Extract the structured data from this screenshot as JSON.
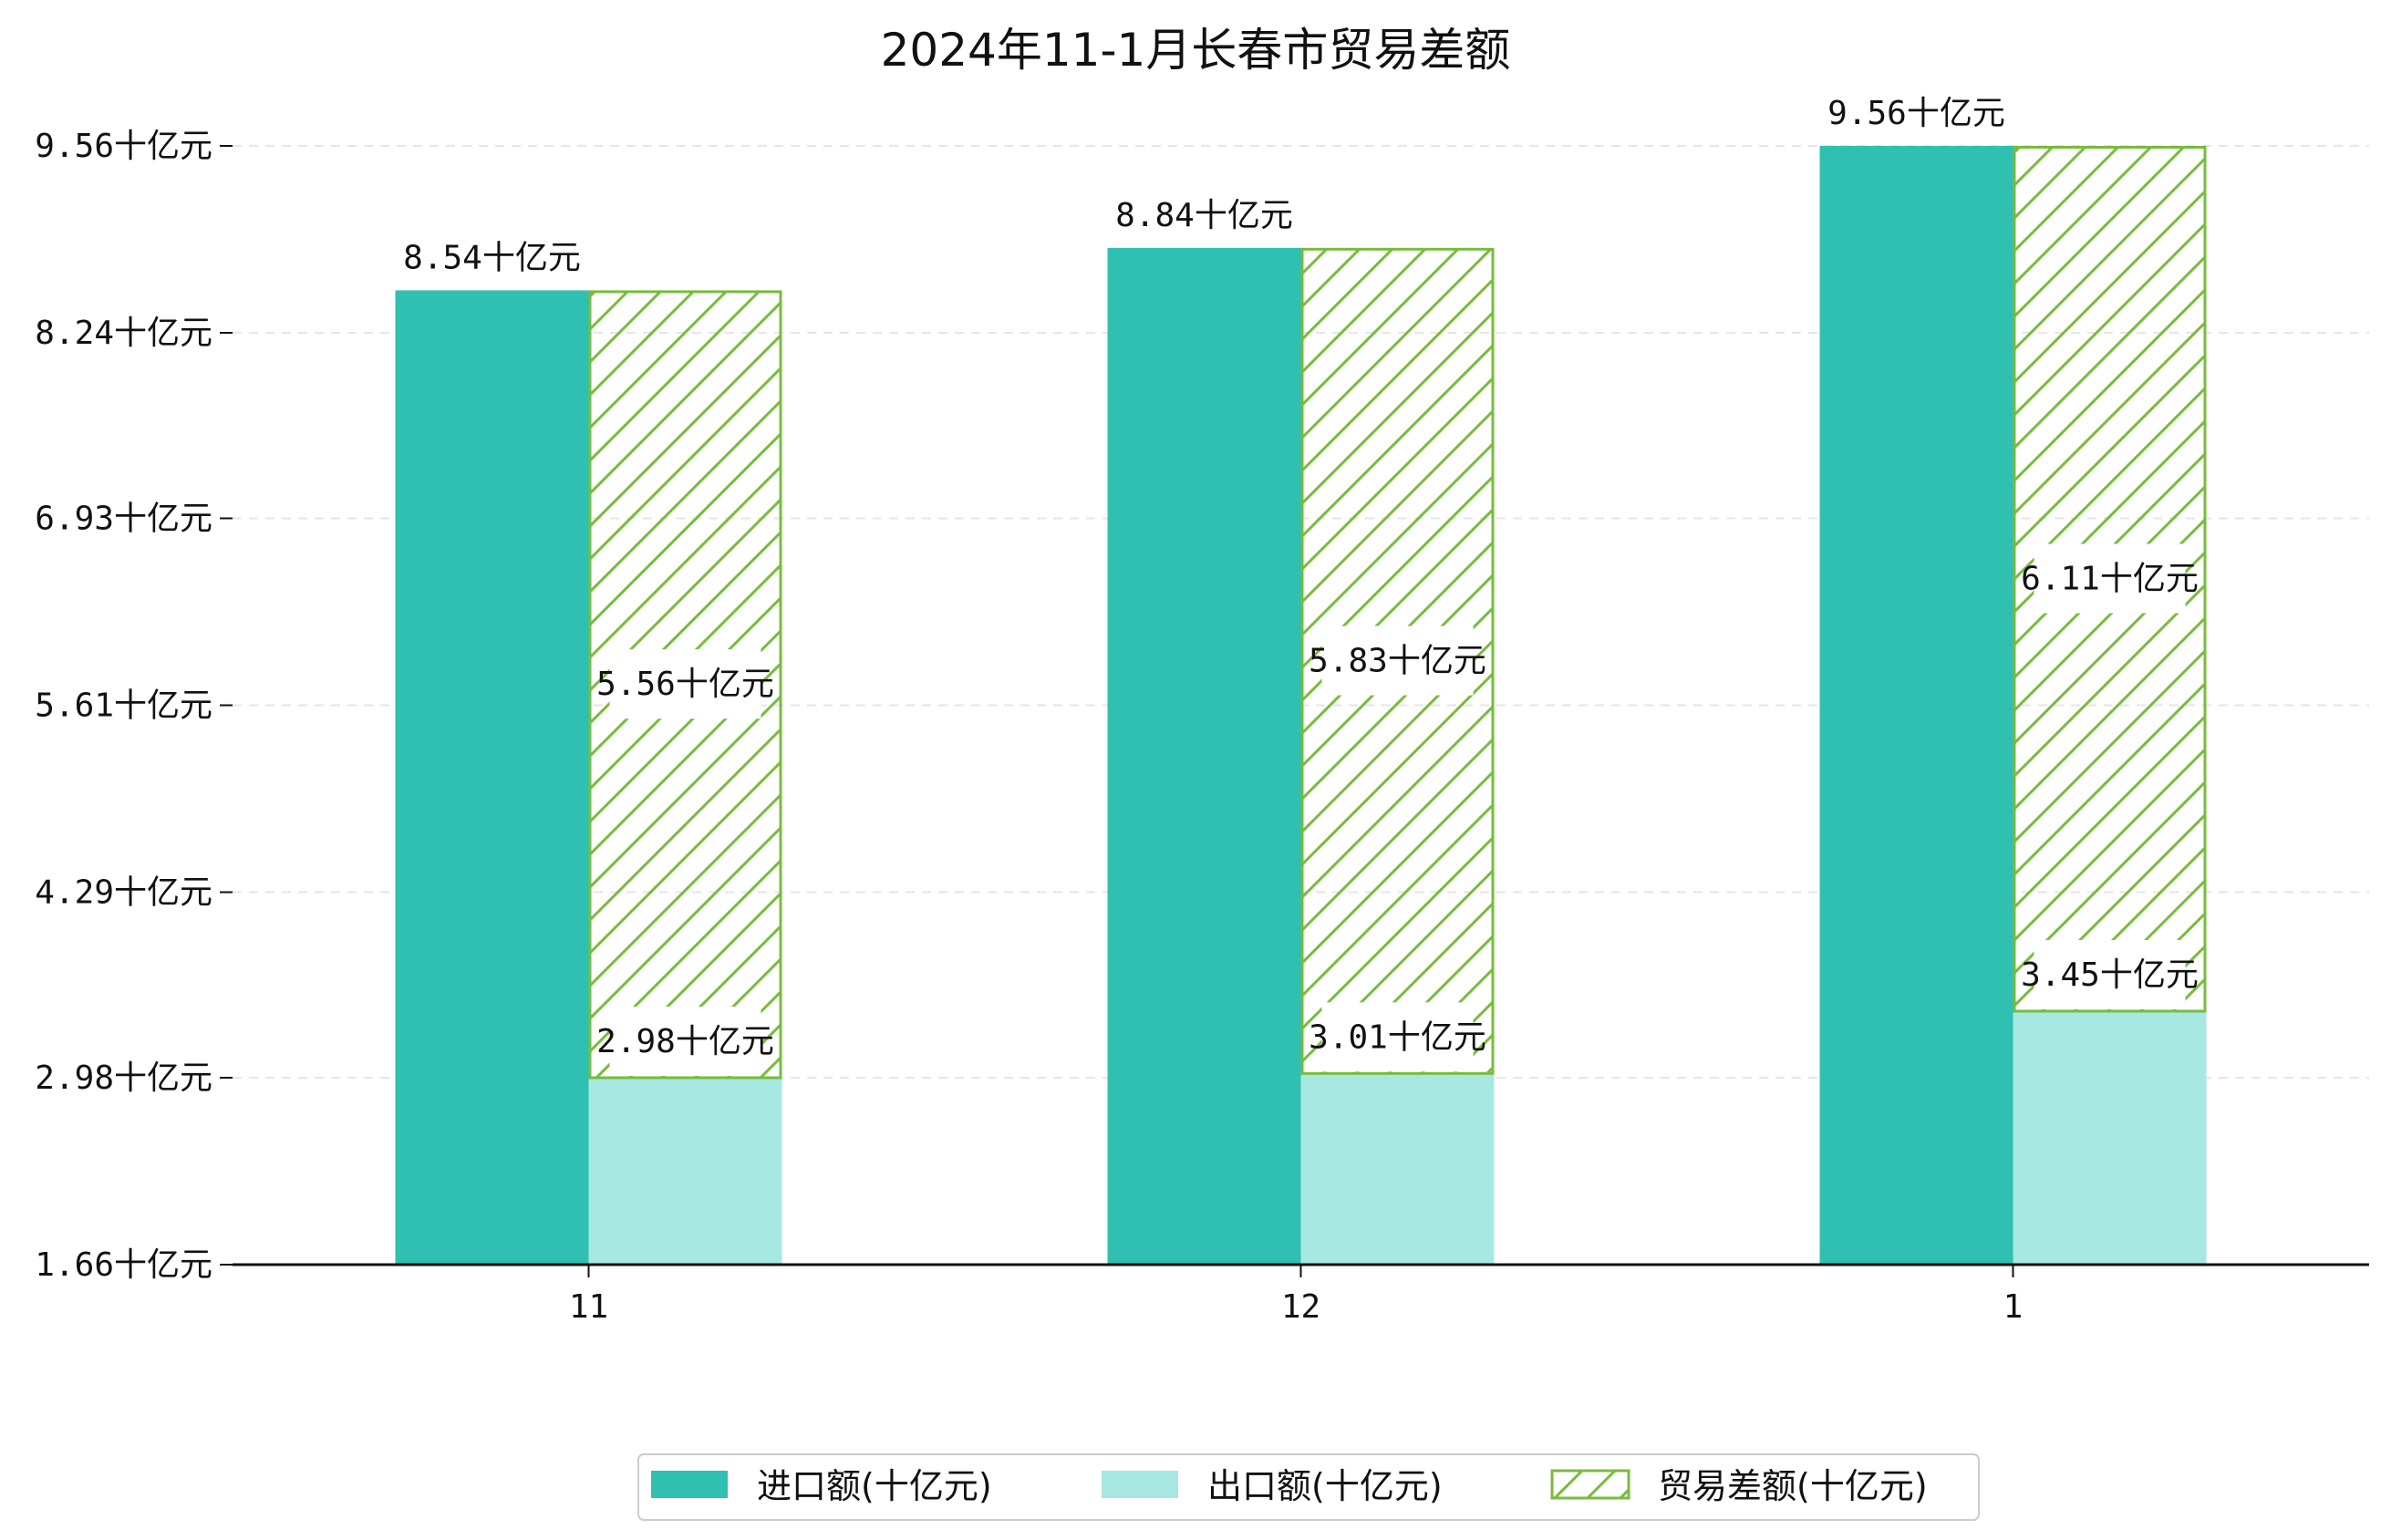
{
  "chart_data": {
    "type": "bar",
    "title": "2024年11-1月长春市贸易差额",
    "categories": [
      "11",
      "12",
      "1"
    ],
    "series": [
      {
        "name": "进口额(十亿元)",
        "values": [
          8.54,
          8.84,
          9.56
        ],
        "color": "#30c0b2",
        "labels": [
          "8.54十亿元",
          "8.84十亿元",
          "9.56十亿元"
        ]
      },
      {
        "name": "出口额(十亿元)",
        "values": [
          2.98,
          3.01,
          3.45
        ],
        "color": "#a8e8e2",
        "labels": [
          "2.98十亿元",
          "3.01十亿元",
          "3.45十亿元"
        ]
      },
      {
        "name": "贸易差额(十亿元)",
        "values": [
          5.56,
          5.83,
          6.11
        ],
        "color": "#78bc3c",
        "pattern": "hatch",
        "stacked_on": "出口额(十亿元)",
        "labels": [
          "5.56十亿元",
          "5.83十亿元",
          "6.11十亿元"
        ]
      }
    ],
    "yticks": [
      1.66,
      2.98,
      4.29,
      5.61,
      6.93,
      8.24,
      9.56
    ],
    "ytick_labels": [
      "1.66十亿元",
      "2.98十亿元",
      "4.29十亿元",
      "5.61十亿元",
      "6.93十亿元",
      "8.24十亿元",
      "9.56十亿元"
    ],
    "ylim": [
      1.66,
      9.56
    ],
    "grid": true,
    "legend_position": "bottom-center"
  }
}
